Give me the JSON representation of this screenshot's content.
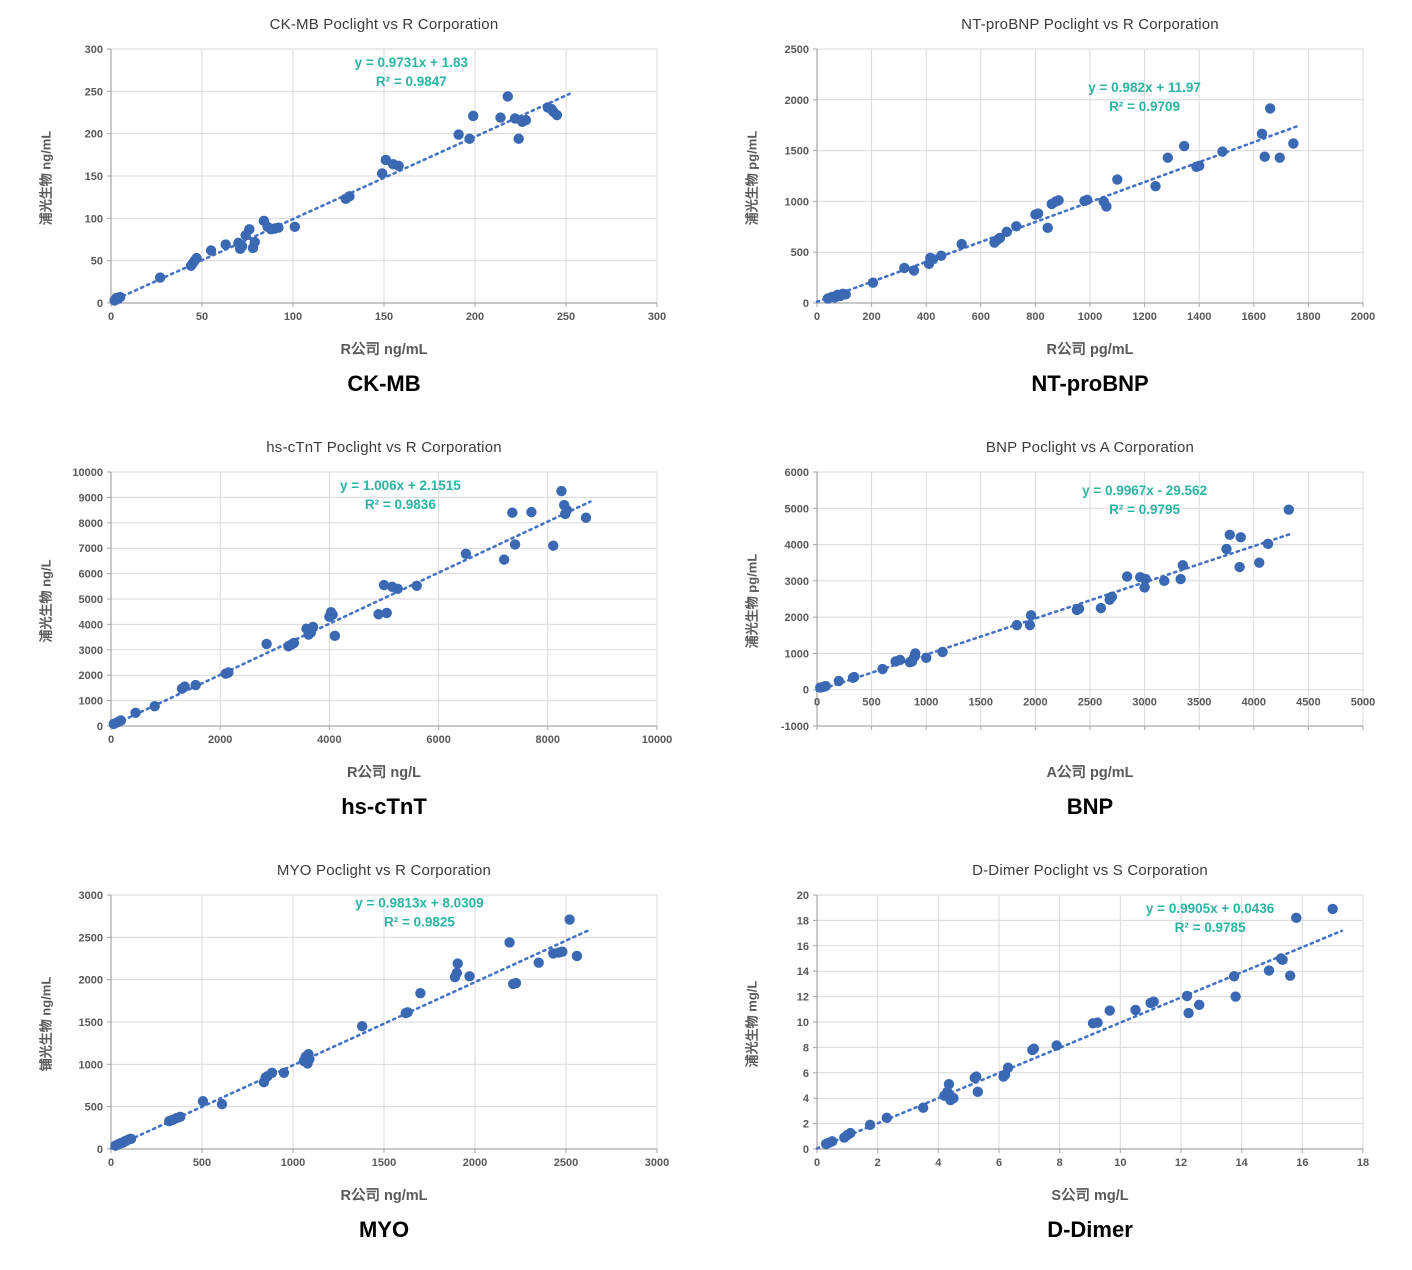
{
  "colors": {
    "point": "#3a68b2",
    "trend": "#4472c4",
    "equation": "#2bb3a3",
    "grid": "#d9d9d9",
    "axis_line": "#a6a6a6",
    "axis_text": "#595959",
    "title_text": "#3b3b3b",
    "panel_label_text": "#000000"
  },
  "chart_data": [
    {
      "type": "scatter",
      "title": "CK-MB Poclight vs R Corporation",
      "panel_label": "CK-MB",
      "xlabel": "R公司 ng/mL",
      "ylabel": "浦光生物 ng/mL",
      "equation": "y = 0.9731x + 1.83",
      "r_squared": "R² = 0.9847",
      "xlim": [
        0,
        300
      ],
      "ylim": [
        0,
        300
      ],
      "xticks": [
        0,
        50,
        100,
        150,
        200,
        250,
        300
      ],
      "yticks": [
        0,
        50,
        100,
        150,
        200,
        250,
        300
      ],
      "trend": {
        "slope": 0.9731,
        "intercept": 1.83,
        "x_start": 0,
        "x_end": 252
      },
      "layout": {
        "eq_x": 0.55,
        "eq_y": 0.07,
        "x_labels_at_zero": false,
        "grid": true
      },
      "points": [
        [
          2,
          3
        ],
        [
          3,
          6
        ],
        [
          4,
          5
        ],
        [
          5,
          7
        ],
        [
          27,
          30
        ],
        [
          44,
          44
        ],
        [
          45,
          47
        ],
        [
          46,
          50
        ],
        [
          47,
          53
        ],
        [
          55,
          62
        ],
        [
          63,
          69
        ],
        [
          70,
          71
        ],
        [
          71,
          64
        ],
        [
          72,
          67
        ],
        [
          74,
          80
        ],
        [
          76,
          87
        ],
        [
          78,
          65
        ],
        [
          79,
          72
        ],
        [
          84,
          97
        ],
        [
          86,
          90
        ],
        [
          88,
          87
        ],
        [
          90,
          88
        ],
        [
          92,
          89
        ],
        [
          101,
          90
        ],
        [
          129,
          123
        ],
        [
          131,
          126
        ],
        [
          149,
          153
        ],
        [
          151,
          169
        ],
        [
          155,
          164
        ],
        [
          158,
          162
        ],
        [
          191,
          199
        ],
        [
          197,
          194
        ],
        [
          199,
          221
        ],
        [
          214,
          219
        ],
        [
          218,
          244
        ],
        [
          222,
          218
        ],
        [
          224,
          194
        ],
        [
          226,
          214
        ],
        [
          228,
          216
        ],
        [
          240,
          231
        ],
        [
          242,
          229
        ],
        [
          243,
          226
        ],
        [
          245,
          222
        ]
      ]
    },
    {
      "type": "scatter",
      "title": "NT-proBNP Poclight vs R Corporation",
      "panel_label": "NT-proBNP",
      "xlabel": "R公司 pg/mL",
      "ylabel": "浦光生物 pg/mL",
      "equation": "y = 0.982x + 11.97",
      "r_squared": "R² = 0.9709",
      "xlim": [
        0,
        2000
      ],
      "ylim": [
        0,
        2500
      ],
      "xticks": [
        0,
        200,
        400,
        600,
        800,
        1000,
        1200,
        1400,
        1600,
        1800,
        2000
      ],
      "yticks": [
        0,
        500,
        1000,
        1500,
        2000,
        2500
      ],
      "trend": {
        "slope": 0.982,
        "intercept": 11.97,
        "x_start": 0,
        "x_end": 1760
      },
      "layout": {
        "eq_x": 0.6,
        "eq_y": 0.17,
        "x_labels_at_zero": false,
        "grid": true
      },
      "points": [
        [
          40,
          45
        ],
        [
          55,
          60
        ],
        [
          65,
          55
        ],
        [
          75,
          80
        ],
        [
          85,
          70
        ],
        [
          95,
          90
        ],
        [
          105,
          85
        ],
        [
          205,
          200
        ],
        [
          320,
          345
        ],
        [
          355,
          320
        ],
        [
          410,
          385
        ],
        [
          415,
          445
        ],
        [
          425,
          430
        ],
        [
          455,
          465
        ],
        [
          530,
          580
        ],
        [
          650,
          595
        ],
        [
          660,
          620
        ],
        [
          670,
          640
        ],
        [
          695,
          700
        ],
        [
          730,
          755
        ],
        [
          800,
          870
        ],
        [
          810,
          880
        ],
        [
          845,
          740
        ],
        [
          860,
          975
        ],
        [
          875,
          1000
        ],
        [
          885,
          1010
        ],
        [
          980,
          1005
        ],
        [
          990,
          1015
        ],
        [
          1050,
          1000
        ],
        [
          1060,
          950
        ],
        [
          1100,
          1215
        ],
        [
          1240,
          1150
        ],
        [
          1285,
          1430
        ],
        [
          1345,
          1545
        ],
        [
          1390,
          1340
        ],
        [
          1400,
          1350
        ],
        [
          1485,
          1490
        ],
        [
          1630,
          1665
        ],
        [
          1640,
          1440
        ],
        [
          1660,
          1915
        ],
        [
          1695,
          1430
        ],
        [
          1745,
          1570
        ]
      ]
    },
    {
      "type": "scatter",
      "title": "hs-cTnT Poclight vs R Corporation",
      "panel_label": "hs-cTnT",
      "xlabel": "R公司 ng/L",
      "ylabel": "浦光生物 ng/L",
      "equation": "y = 1.006x + 2.1515",
      "r_squared": "R² = 0.9836",
      "xlim": [
        0,
        10000
      ],
      "ylim": [
        0,
        10000
      ],
      "xticks": [
        0,
        2000,
        4000,
        6000,
        8000,
        10000
      ],
      "yticks": [
        0,
        1000,
        2000,
        3000,
        4000,
        5000,
        6000,
        7000,
        8000,
        9000,
        10000
      ],
      "trend": {
        "slope": 1.006,
        "intercept": 2.1515,
        "x_start": 0,
        "x_end": 8780
      },
      "layout": {
        "eq_x": 0.53,
        "eq_y": 0.07,
        "x_labels_at_zero": false,
        "grid": true
      },
      "points": [
        [
          50,
          80
        ],
        [
          120,
          150
        ],
        [
          180,
          220
        ],
        [
          450,
          520
        ],
        [
          800,
          780
        ],
        [
          1300,
          1470
        ],
        [
          1350,
          1550
        ],
        [
          1550,
          1610
        ],
        [
          2100,
          2060
        ],
        [
          2150,
          2110
        ],
        [
          2850,
          3230
        ],
        [
          3250,
          3140
        ],
        [
          3300,
          3200
        ],
        [
          3350,
          3270
        ],
        [
          3580,
          3830
        ],
        [
          3620,
          3600
        ],
        [
          3660,
          3680
        ],
        [
          3700,
          3900
        ],
        [
          4000,
          4300
        ],
        [
          4030,
          4480
        ],
        [
          4060,
          4380
        ],
        [
          4100,
          3550
        ],
        [
          4900,
          4400
        ],
        [
          5050,
          4450
        ],
        [
          5000,
          5550
        ],
        [
          5150,
          5480
        ],
        [
          5250,
          5400
        ],
        [
          5600,
          5520
        ],
        [
          6500,
          6780
        ],
        [
          7200,
          6550
        ],
        [
          7400,
          7150
        ],
        [
          7350,
          8400
        ],
        [
          7700,
          8420
        ],
        [
          8100,
          7100
        ],
        [
          8250,
          9250
        ],
        [
          8300,
          8700
        ],
        [
          8350,
          8500
        ],
        [
          8320,
          8350
        ],
        [
          8700,
          8200
        ]
      ]
    },
    {
      "type": "scatter",
      "title": "BNP Poclight vs A Corporation",
      "panel_label": "BNP",
      "xlabel": "A公司 pg/mL",
      "ylabel": "浦光生物 pg/mL",
      "equation": "y = 0.9967x - 29.562",
      "r_squared": "R² = 0.9795",
      "xlim": [
        0,
        5000
      ],
      "ylim": [
        -1000,
        6000
      ],
      "xticks": [
        0,
        500,
        1000,
        1500,
        2000,
        2500,
        3000,
        3500,
        4000,
        4500,
        5000
      ],
      "yticks": [
        -1000,
        0,
        1000,
        2000,
        3000,
        4000,
        5000,
        6000
      ],
      "trend": {
        "slope": 0.9967,
        "intercept": -29.562,
        "x_start": 0,
        "x_end": 4350
      },
      "layout": {
        "eq_x": 0.6,
        "eq_y": 0.09,
        "x_labels_at_zero": true,
        "grid": true
      },
      "points": [
        [
          30,
          60
        ],
        [
          60,
          80
        ],
        [
          80,
          100
        ],
        [
          200,
          240
        ],
        [
          330,
          330
        ],
        [
          340,
          350
        ],
        [
          600,
          570
        ],
        [
          720,
          780
        ],
        [
          760,
          820
        ],
        [
          850,
          760
        ],
        [
          870,
          780
        ],
        [
          890,
          900
        ],
        [
          900,
          1000
        ],
        [
          1000,
          880
        ],
        [
          1150,
          1040
        ],
        [
          1830,
          1780
        ],
        [
          1950,
          1780
        ],
        [
          1960,
          2050
        ],
        [
          2380,
          2200
        ],
        [
          2400,
          2230
        ],
        [
          2600,
          2250
        ],
        [
          2680,
          2480
        ],
        [
          2700,
          2560
        ],
        [
          2840,
          3120
        ],
        [
          2960,
          3100
        ],
        [
          3000,
          2820
        ],
        [
          3010,
          3050
        ],
        [
          3180,
          3000
        ],
        [
          3330,
          3050
        ],
        [
          3350,
          3430
        ],
        [
          3750,
          3880
        ],
        [
          3780,
          4270
        ],
        [
          3870,
          3380
        ],
        [
          3880,
          4200
        ],
        [
          4050,
          3500
        ],
        [
          4130,
          4020
        ],
        [
          4320,
          4960
        ]
      ]
    },
    {
      "type": "scatter",
      "title": "MYO Poclight vs R Corporation",
      "panel_label": "MYO",
      "xlabel": "R公司 ng/mL",
      "ylabel": "铺光生物 ng/mL",
      "equation": "y = 0.9813x + 8.0309",
      "r_squared": "R² = 0.9825",
      "xlim": [
        0,
        3000
      ],
      "ylim": [
        0,
        3000
      ],
      "xticks": [
        0,
        500,
        1000,
        1500,
        2000,
        2500,
        3000
      ],
      "yticks": [
        0,
        500,
        1000,
        1500,
        2000,
        2500,
        3000
      ],
      "trend": {
        "slope": 0.9813,
        "intercept": 8.0309,
        "x_start": 0,
        "x_end": 2620
      },
      "layout": {
        "eq_x": 0.565,
        "eq_y": 0.05,
        "x_labels_at_zero": false,
        "grid": true
      },
      "points": [
        [
          25,
          40
        ],
        [
          40,
          55
        ],
        [
          55,
          70
        ],
        [
          65,
          75
        ],
        [
          75,
          90
        ],
        [
          85,
          100
        ],
        [
          100,
          115
        ],
        [
          110,
          120
        ],
        [
          320,
          330
        ],
        [
          340,
          345
        ],
        [
          360,
          365
        ],
        [
          380,
          380
        ],
        [
          505,
          565
        ],
        [
          610,
          530
        ],
        [
          840,
          790
        ],
        [
          850,
          845
        ],
        [
          860,
          860
        ],
        [
          885,
          900
        ],
        [
          950,
          900
        ],
        [
          1060,
          1040
        ],
        [
          1070,
          1090
        ],
        [
          1080,
          1010
        ],
        [
          1085,
          1120
        ],
        [
          1090,
          1060
        ],
        [
          1380,
          1450
        ],
        [
          1620,
          1605
        ],
        [
          1630,
          1615
        ],
        [
          1700,
          1840
        ],
        [
          1890,
          2030
        ],
        [
          1900,
          2080
        ],
        [
          1905,
          2190
        ],
        [
          1970,
          2040
        ],
        [
          2190,
          2440
        ],
        [
          2210,
          1950
        ],
        [
          2225,
          1960
        ],
        [
          2350,
          2200
        ],
        [
          2430,
          2310
        ],
        [
          2460,
          2320
        ],
        [
          2480,
          2330
        ],
        [
          2520,
          2710
        ],
        [
          2560,
          2280
        ]
      ]
    },
    {
      "type": "scatter",
      "title": "D-Dimer Poclight vs S Corporation",
      "panel_label": "D-Dimer",
      "xlabel": "S公司 mg/L",
      "ylabel": "浦光生物 mg/L",
      "equation": "y = 0.9905x + 0.0436",
      "r_squared": "R² = 0.9785",
      "xlim": [
        0,
        18
      ],
      "ylim": [
        0,
        20
      ],
      "xticks": [
        0,
        2,
        4,
        6,
        8,
        10,
        12,
        14,
        16,
        18
      ],
      "yticks": [
        0,
        2,
        4,
        6,
        8,
        10,
        12,
        14,
        16,
        18,
        20
      ],
      "trend": {
        "slope": 0.9905,
        "intercept": 0.0436,
        "x_start": 0,
        "x_end": 17.3
      },
      "layout": {
        "eq_x": 0.72,
        "eq_y": 0.07,
        "x_labels_at_zero": false,
        "grid": true
      },
      "points": [
        [
          0.3,
          0.4
        ],
        [
          0.4,
          0.5
        ],
        [
          0.5,
          0.6
        ],
        [
          0.9,
          0.9
        ],
        [
          1.0,
          1.1
        ],
        [
          1.1,
          1.25
        ],
        [
          1.75,
          1.9
        ],
        [
          2.3,
          2.45
        ],
        [
          3.5,
          3.25
        ],
        [
          4.2,
          4.2
        ],
        [
          4.3,
          4.5
        ],
        [
          4.35,
          5.1
        ],
        [
          4.4,
          3.85
        ],
        [
          4.5,
          4.0
        ],
        [
          5.2,
          5.6
        ],
        [
          5.25,
          5.7
        ],
        [
          5.3,
          4.5
        ],
        [
          6.15,
          5.7
        ],
        [
          6.2,
          5.85
        ],
        [
          6.3,
          6.4
        ],
        [
          7.1,
          7.8
        ],
        [
          7.15,
          7.9
        ],
        [
          7.9,
          8.15
        ],
        [
          9.1,
          9.9
        ],
        [
          9.25,
          9.95
        ],
        [
          9.65,
          10.9
        ],
        [
          10.5,
          10.95
        ],
        [
          11.0,
          11.5
        ],
        [
          11.1,
          11.6
        ],
        [
          12.2,
          12.05
        ],
        [
          12.25,
          10.7
        ],
        [
          12.6,
          11.35
        ],
        [
          13.75,
          13.6
        ],
        [
          13.8,
          12.0
        ],
        [
          14.9,
          14.05
        ],
        [
          15.3,
          15.0
        ],
        [
          15.35,
          14.9
        ],
        [
          15.6,
          13.65
        ],
        [
          15.8,
          18.2
        ],
        [
          17.0,
          18.9
        ]
      ]
    }
  ]
}
